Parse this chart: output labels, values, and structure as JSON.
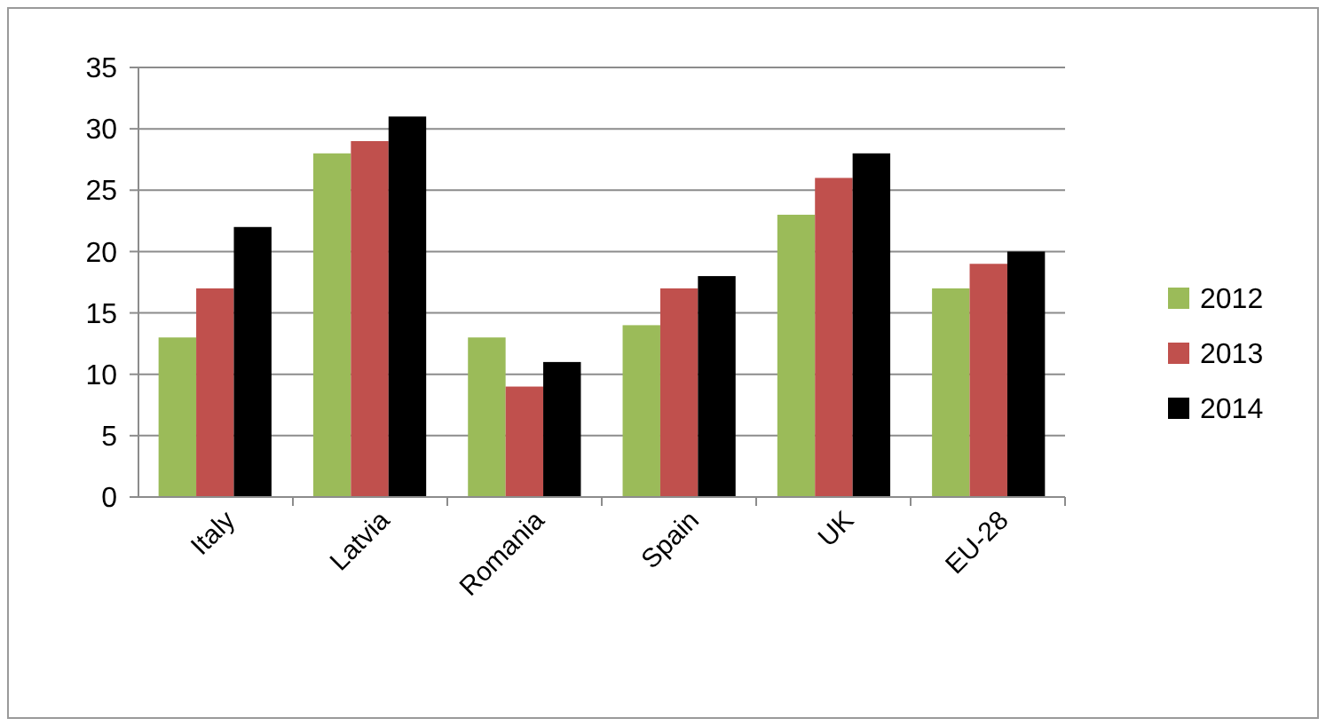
{
  "chart_data": {
    "type": "bar",
    "categories": [
      "Italy",
      "Latvia",
      "Romania",
      "Spain",
      "UK",
      "EU-28"
    ],
    "series": [
      {
        "name": "2012",
        "color": "#9bbb59",
        "values": [
          13,
          28,
          13,
          14,
          23,
          17
        ]
      },
      {
        "name": "2013",
        "color": "#c0504d",
        "values": [
          17,
          29,
          9,
          17,
          26,
          19
        ]
      },
      {
        "name": "2014",
        "color": "#000000",
        "values": [
          22,
          31,
          11,
          18,
          28,
          20
        ]
      }
    ],
    "ylim": [
      0,
      35
    ],
    "yticks": [
      0,
      5,
      10,
      15,
      20,
      25,
      30,
      35
    ],
    "grid": "y",
    "legend": "right"
  }
}
